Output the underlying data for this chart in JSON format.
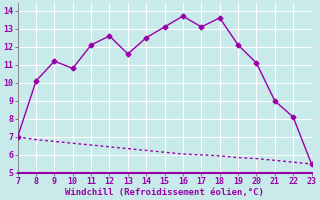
{
  "xlabel": "Windchill (Refroidissement éolien,°C)",
  "x_values": [
    7,
    8,
    9,
    10,
    11,
    12,
    13,
    14,
    15,
    16,
    17,
    18,
    19,
    20,
    21,
    22,
    23
  ],
  "y_upper": [
    7.0,
    10.1,
    11.2,
    10.8,
    12.1,
    12.6,
    11.6,
    12.5,
    13.1,
    13.7,
    13.1,
    13.6,
    12.1,
    11.1,
    9.0,
    8.1,
    5.5
  ],
  "y_lower": [
    7.0,
    6.85,
    6.75,
    6.65,
    6.55,
    6.45,
    6.35,
    6.25,
    6.15,
    6.05,
    6.0,
    5.95,
    5.85,
    5.8,
    5.7,
    5.6,
    5.5
  ],
  "line_color": "#9900aa",
  "bg_color": "#c8eaea",
  "grid_color": "#aacccc",
  "plot_bg": "#c8eaea",
  "xlim": [
    7,
    23
  ],
  "ylim": [
    5,
    14.4
  ],
  "xticks": [
    7,
    8,
    9,
    10,
    11,
    12,
    13,
    14,
    15,
    16,
    17,
    18,
    19,
    20,
    21,
    22,
    23
  ],
  "yticks": [
    5,
    6,
    7,
    8,
    9,
    10,
    11,
    12,
    13,
    14
  ],
  "marker": "D",
  "markersize": 2.5,
  "linewidth": 1.0,
  "tick_fontsize": 6.0,
  "xlabel_fontsize": 6.5
}
